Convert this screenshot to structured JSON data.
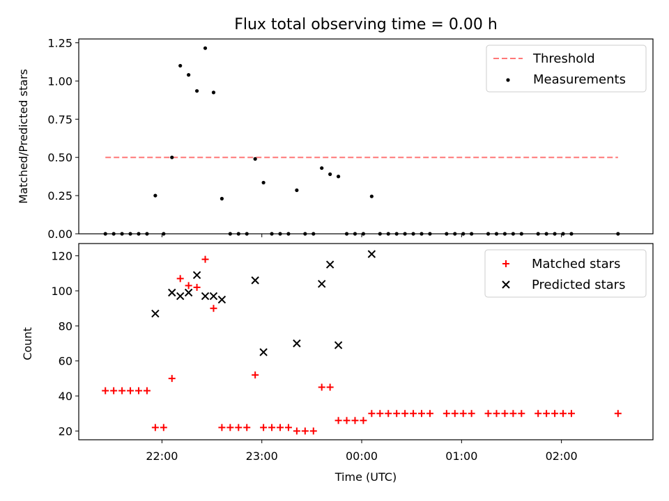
{
  "chart_data": [
    {
      "type": "scatter",
      "title": "Flux total observing time = 0.00 h",
      "xlabel": "",
      "ylabel": "Matched/Predicted stars",
      "xlim": [
        "21:10",
        "02:55"
      ],
      "ylim": [
        0,
        1.275
      ],
      "yticks": [
        "0.00",
        "0.25",
        "0.50",
        "0.75",
        "1.00",
        "1.25"
      ],
      "ytick_values": [
        0,
        0.25,
        0.5,
        0.75,
        1.0,
        1.25
      ],
      "legend_position": "upper right",
      "threshold": {
        "name": "Threshold",
        "value": 0.5,
        "x_start": "21:26",
        "x_end": "02:34",
        "color": "#ff7777"
      },
      "series": [
        {
          "name": "Measurements",
          "color": "#000000",
          "marker": "dot",
          "points": [
            [
              "21:26",
              0
            ],
            [
              "21:31",
              0
            ],
            [
              "21:36",
              0
            ],
            [
              "21:41",
              0
            ],
            [
              "21:46",
              0
            ],
            [
              "21:51",
              0
            ],
            [
              "21:56",
              0.25
            ],
            [
              "22:01",
              0
            ],
            [
              "22:06",
              0.5
            ],
            [
              "22:11",
              1.1
            ],
            [
              "22:16",
              1.04
            ],
            [
              "22:21",
              0.935
            ],
            [
              "22:26",
              1.215
            ],
            [
              "22:31",
              0.925
            ],
            [
              "22:36",
              0.23
            ],
            [
              "22:41",
              0
            ],
            [
              "22:46",
              0
            ],
            [
              "22:51",
              0
            ],
            [
              "22:56",
              0.49
            ],
            [
              "23:01",
              0.335
            ],
            [
              "23:06",
              0
            ],
            [
              "23:11",
              0
            ],
            [
              "23:16",
              0
            ],
            [
              "23:21",
              0.285
            ],
            [
              "23:26",
              0
            ],
            [
              "23:31",
              0
            ],
            [
              "23:36",
              0.43
            ],
            [
              "23:41",
              0.39
            ],
            [
              "23:46",
              0.375
            ],
            [
              "23:51",
              0
            ],
            [
              "23:56",
              0
            ],
            [
              "00:01",
              0
            ],
            [
              "00:06",
              0.245
            ],
            [
              "00:11",
              0
            ],
            [
              "00:16",
              0
            ],
            [
              "00:21",
              0
            ],
            [
              "00:26",
              0
            ],
            [
              "00:31",
              0
            ],
            [
              "00:36",
              0
            ],
            [
              "00:41",
              0
            ],
            [
              "00:51",
              0
            ],
            [
              "00:56",
              0
            ],
            [
              "01:01",
              0
            ],
            [
              "01:06",
              0
            ],
            [
              "01:16",
              0
            ],
            [
              "01:21",
              0
            ],
            [
              "01:26",
              0
            ],
            [
              "01:31",
              0
            ],
            [
              "01:36",
              0
            ],
            [
              "01:46",
              0
            ],
            [
              "01:51",
              0
            ],
            [
              "01:56",
              0
            ],
            [
              "02:01",
              0
            ],
            [
              "02:06",
              0
            ],
            [
              "02:34",
              0
            ]
          ]
        }
      ]
    },
    {
      "type": "scatter",
      "title": "",
      "xlabel": "Time (UTC)",
      "ylabel": "Count",
      "xlim": [
        "21:10",
        "02:55"
      ],
      "ylim": [
        15,
        127
      ],
      "xticks": [
        "22:00",
        "23:00",
        "00:00",
        "01:00",
        "02:00"
      ],
      "yticks": [
        "20",
        "40",
        "60",
        "80",
        "100",
        "120"
      ],
      "ytick_values": [
        20,
        40,
        60,
        80,
        100,
        120
      ],
      "legend_position": "upper right",
      "series": [
        {
          "name": "Matched stars",
          "color": "#ff0000",
          "marker": "plus",
          "points": [
            [
              "21:26",
              43
            ],
            [
              "21:31",
              43
            ],
            [
              "21:36",
              43
            ],
            [
              "21:41",
              43
            ],
            [
              "21:46",
              43
            ],
            [
              "21:51",
              43
            ],
            [
              "21:56",
              22
            ],
            [
              "22:01",
              22
            ],
            [
              "22:06",
              50
            ],
            [
              "22:11",
              107
            ],
            [
              "22:16",
              103
            ],
            [
              "22:21",
              102
            ],
            [
              "22:26",
              118
            ],
            [
              "22:31",
              90
            ],
            [
              "22:36",
              22
            ],
            [
              "22:41",
              22
            ],
            [
              "22:46",
              22
            ],
            [
              "22:51",
              22
            ],
            [
              "22:56",
              52
            ],
            [
              "23:01",
              22
            ],
            [
              "23:06",
              22
            ],
            [
              "23:11",
              22
            ],
            [
              "23:16",
              22
            ],
            [
              "23:21",
              20
            ],
            [
              "23:26",
              20
            ],
            [
              "23:31",
              20
            ],
            [
              "23:36",
              45
            ],
            [
              "23:41",
              45
            ],
            [
              "23:46",
              26
            ],
            [
              "23:51",
              26
            ],
            [
              "23:56",
              26
            ],
            [
              "00:01",
              26
            ],
            [
              "00:06",
              30
            ],
            [
              "00:11",
              30
            ],
            [
              "00:16",
              30
            ],
            [
              "00:21",
              30
            ],
            [
              "00:26",
              30
            ],
            [
              "00:31",
              30
            ],
            [
              "00:36",
              30
            ],
            [
              "00:41",
              30
            ],
            [
              "00:51",
              30
            ],
            [
              "00:56",
              30
            ],
            [
              "01:01",
              30
            ],
            [
              "01:06",
              30
            ],
            [
              "01:16",
              30
            ],
            [
              "01:21",
              30
            ],
            [
              "01:26",
              30
            ],
            [
              "01:31",
              30
            ],
            [
              "01:36",
              30
            ],
            [
              "01:46",
              30
            ],
            [
              "01:51",
              30
            ],
            [
              "01:56",
              30
            ],
            [
              "02:01",
              30
            ],
            [
              "02:06",
              30
            ],
            [
              "02:34",
              30
            ]
          ]
        },
        {
          "name": "Predicted stars",
          "color": "#000000",
          "marker": "x",
          "points": [
            [
              "21:56",
              87
            ],
            [
              "22:06",
              99
            ],
            [
              "22:11",
              97
            ],
            [
              "22:16",
              99
            ],
            [
              "22:21",
              109
            ],
            [
              "22:26",
              97
            ],
            [
              "22:31",
              97
            ],
            [
              "22:36",
              95
            ],
            [
              "22:56",
              106
            ],
            [
              "23:01",
              65
            ],
            [
              "23:21",
              70
            ],
            [
              "23:36",
              104
            ],
            [
              "23:41",
              115
            ],
            [
              "23:46",
              69
            ],
            [
              "00:06",
              121
            ]
          ]
        }
      ]
    }
  ]
}
